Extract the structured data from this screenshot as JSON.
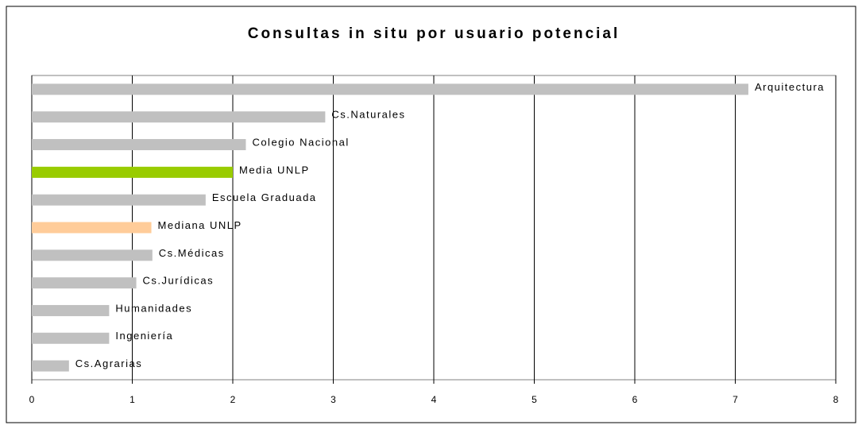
{
  "chart_data": {
    "type": "bar",
    "orientation": "horizontal",
    "title": "Consultas in situ por usuario potencial",
    "categories": [
      "Arquitectura",
      "Cs.Naturales",
      "Colegio Nacional",
      "Media UNLP",
      "Escuela Graduada",
      "Mediana UNLP",
      "Cs.Médicas",
      "Cs.Jurídicas",
      "Humanidades",
      "Ingeniería",
      "Cs.Agrarias"
    ],
    "values": [
      7.13,
      2.92,
      2.13,
      2.0,
      1.73,
      1.19,
      1.2,
      1.04,
      0.77,
      0.77,
      0.37
    ],
    "colors": [
      "#c0c0c0",
      "#c0c0c0",
      "#c0c0c0",
      "#99cc00",
      "#c0c0c0",
      "#ffcc99",
      "#c0c0c0",
      "#c0c0c0",
      "#c0c0c0",
      "#c0c0c0",
      "#c0c0c0"
    ],
    "xlim": [
      0,
      8
    ],
    "xticks": [
      0,
      1,
      2,
      3,
      4,
      5,
      6,
      7,
      8
    ],
    "grid": true
  }
}
